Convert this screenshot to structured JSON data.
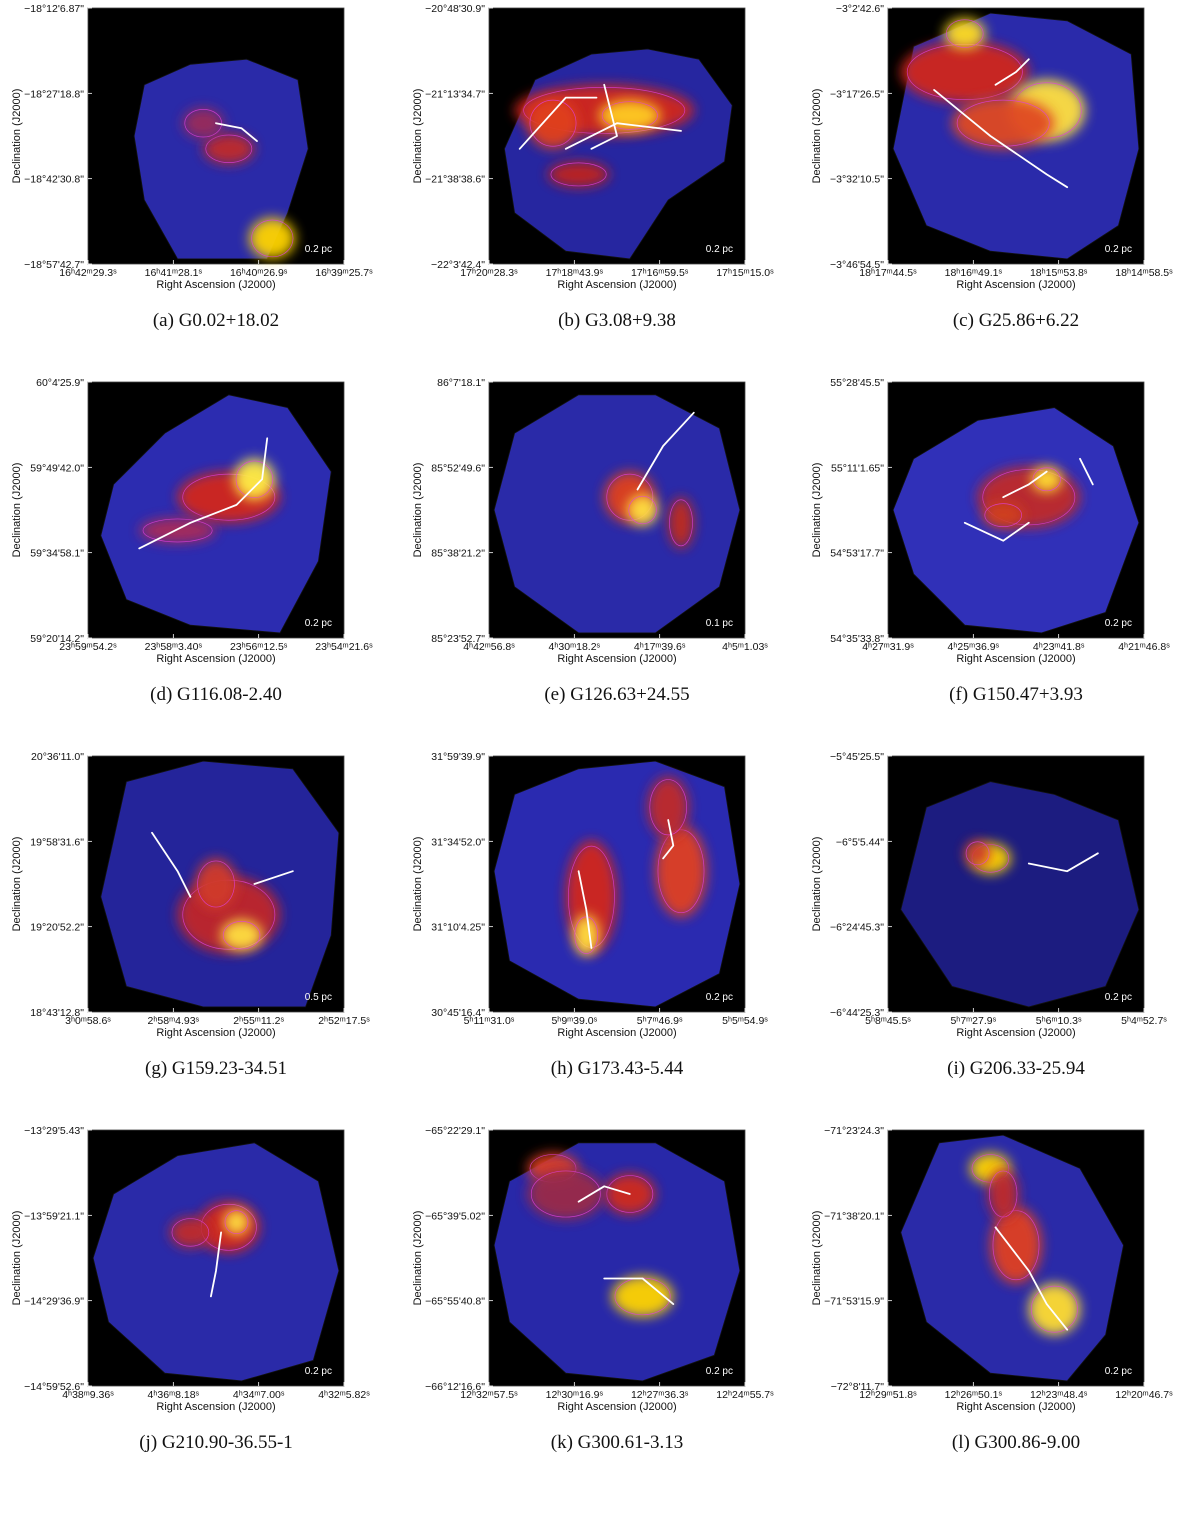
{
  "figure": {
    "axis_labels": {
      "x": "Right Ascension (J2000)",
      "y": "Declination (J2000)"
    },
    "colors": {
      "background": "#000000",
      "low": "#1a1aa6",
      "mid": "#d7261e",
      "high": "#ffe600",
      "filament": "#ffffff",
      "contour_dark": "#111111",
      "contour_magenta": "#e040e0"
    },
    "panels": [
      {
        "id": "a",
        "caption": "(a)  G0.02+18.02",
        "scale_bar": "0.2 pc",
        "ra_ticks": [
          "16ʰ42ᵐ29.3ˢ",
          "16ʰ41ᵐ28.1ˢ",
          "16ʰ40ᵐ26.9ˢ",
          "16ʰ39ᵐ25.7ˢ"
        ],
        "dec_ticks": [
          "−18°12'6.87\"",
          "−18°27'18.8\"",
          "−18°42'30.8\"",
          "−18°57'42.7\""
        ]
      },
      {
        "id": "b",
        "caption": "(b)  G3.08+9.38",
        "scale_bar": "0.2 pc",
        "ra_ticks": [
          "17ʰ20ᵐ28.3ˢ",
          "17ʰ18ᵐ43.9ˢ",
          "17ʰ16ᵐ59.5ˢ",
          "17ʰ15ᵐ15.0ˢ"
        ],
        "dec_ticks": [
          "−20°48'30.9\"",
          "−21°13'34.7\"",
          "−21°38'38.6\"",
          "−22°3'42.4\""
        ]
      },
      {
        "id": "c",
        "caption": "(c)  G25.86+6.22",
        "scale_bar": "0.2 pc",
        "ra_ticks": [
          "18ʰ17ᵐ44.5ˢ",
          "18ʰ16ᵐ49.1ˢ",
          "18ʰ15ᵐ53.8ˢ",
          "18ʰ14ᵐ58.5ˢ"
        ],
        "dec_ticks": [
          "−3°2'42.6\"",
          "−3°17'26.5\"",
          "−3°32'10.5\"",
          "−3°46'54.5\""
        ]
      },
      {
        "id": "d",
        "caption": "(d)  G116.08-2.40",
        "scale_bar": "0.2 pc",
        "ra_ticks": [
          "23ʰ59ᵐ54.2ˢ",
          "23ʰ58ᵐ3.40ˢ",
          "23ʰ56ᵐ12.5ˢ",
          "23ʰ54ᵐ21.6ˢ"
        ],
        "dec_ticks": [
          "60°4'25.9\"",
          "59°49'42.0\"",
          "59°34'58.1\"",
          "59°20'14.2\""
        ]
      },
      {
        "id": "e",
        "caption": "(e)  G126.63+24.55",
        "scale_bar": "0.1 pc",
        "ra_ticks": [
          "4ʰ42ᵐ56.8ˢ",
          "4ʰ30ᵐ18.2ˢ",
          "4ʰ17ᵐ39.6ˢ",
          "4ʰ5ᵐ1.03ˢ"
        ],
        "dec_ticks": [
          "86°7'18.1\"",
          "85°52'49.6\"",
          "85°38'21.2\"",
          "85°23'52.7\""
        ]
      },
      {
        "id": "f",
        "caption": "(f)  G150.47+3.93",
        "scale_bar": "0.2 pc",
        "ra_ticks": [
          "4ʰ27ᵐ31.9ˢ",
          "4ʰ25ᵐ36.9ˢ",
          "4ʰ23ᵐ41.8ˢ",
          "4ʰ21ᵐ46.8ˢ"
        ],
        "dec_ticks": [
          "55°28'45.5\"",
          "55°11'1.65\"",
          "54°53'17.7\"",
          "54°35'33.8\""
        ]
      },
      {
        "id": "g",
        "caption": "(g)  G159.23-34.51",
        "scale_bar": "0.5 pc",
        "ra_ticks": [
          "3ʰ0ᵐ58.6ˢ",
          "2ʰ58ᵐ4.93ˢ",
          "2ʰ55ᵐ11.2ˢ",
          "2ʰ52ᵐ17.5ˢ"
        ],
        "dec_ticks": [
          "20°36'11.0\"",
          "19°58'31.6\"",
          "19°20'52.2\"",
          "18°43'12.8\""
        ]
      },
      {
        "id": "h",
        "caption": "(h)  G173.43-5.44",
        "scale_bar": "0.2 pc",
        "ra_ticks": [
          "5ʰ11ᵐ31.0ˢ",
          "5ʰ9ᵐ39.0ˢ",
          "5ʰ7ᵐ46.9ˢ",
          "5ʰ5ᵐ54.9ˢ"
        ],
        "dec_ticks": [
          "31°59'39.9\"",
          "31°34'52.0\"",
          "31°10'4.25\"",
          "30°45'16.4\""
        ]
      },
      {
        "id": "i",
        "caption": "(i)  G206.33-25.94",
        "scale_bar": "0.2 pc",
        "ra_ticks": [
          "5ʰ8ᵐ45.5ˢ",
          "5ʰ7ᵐ27.9ˢ",
          "5ʰ6ᵐ10.3ˢ",
          "5ʰ4ᵐ52.7ˢ"
        ],
        "dec_ticks": [
          "−5°45'25.5\"",
          "−6°5'5.44\"",
          "−6°24'45.3\"",
          "−6°44'25.3\""
        ]
      },
      {
        "id": "j",
        "caption": "(j)  G210.90-36.55-1",
        "scale_bar": "0.2 pc",
        "ra_ticks": [
          "4ʰ38ᵐ9.36ˢ",
          "4ʰ36ᵐ8.18ˢ",
          "4ʰ34ᵐ7.00ˢ",
          "4ʰ32ᵐ5.82ˢ"
        ],
        "dec_ticks": [
          "−13°29'5.43\"",
          "−13°59'21.1\"",
          "−14°29'36.9\"",
          "−14°59'52.6\""
        ]
      },
      {
        "id": "k",
        "caption": "(k)  G300.61-3.13",
        "scale_bar": "0.2 pc",
        "ra_ticks": [
          "12ʰ32ᵐ57.5ˢ",
          "12ʰ30ᵐ16.9ˢ",
          "12ʰ27ᵐ36.3ˢ",
          "12ʰ24ᵐ55.7ˢ"
        ],
        "dec_ticks": [
          "−65°22'29.1\"",
          "−65°39'5.02\"",
          "−65°55'40.8\"",
          "−66°12'16.6\""
        ]
      },
      {
        "id": "l",
        "caption": "(l)  G300.86-9.00",
        "scale_bar": "0.2 pc",
        "ra_ticks": [
          "12ʰ29ᵐ51.8ˢ",
          "12ʰ26ᵐ50.1ˢ",
          "12ʰ23ᵐ48.4ˢ",
          "12ʰ20ᵐ46.7ˢ"
        ],
        "dec_ticks": [
          "−71°23'24.3\"",
          "−71°38'20.1\"",
          "−71°53'15.9\"",
          "−72°8'11.7\""
        ]
      }
    ]
  }
}
